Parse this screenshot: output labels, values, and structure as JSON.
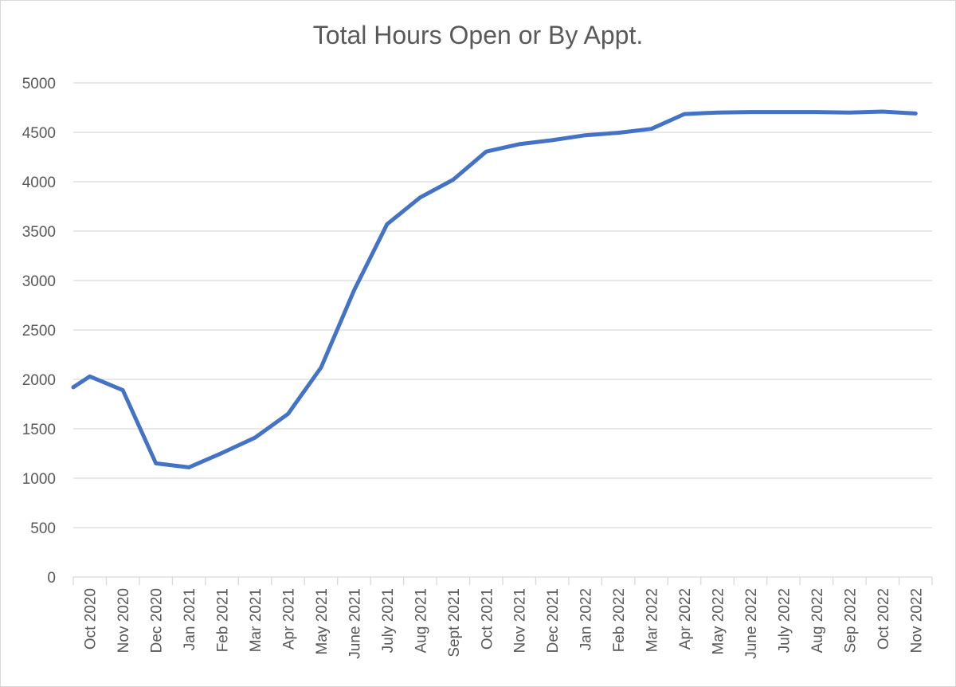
{
  "chart_data": {
    "type": "line",
    "title": "Total Hours Open or By Appt.",
    "xlabel": "",
    "ylabel": "",
    "ylim": [
      0,
      5000
    ],
    "yticks": [
      0,
      500,
      1000,
      1500,
      2000,
      2500,
      3000,
      3500,
      4000,
      4500,
      5000
    ],
    "categories": [
      "Oct 2020",
      "Nov 2020",
      "Dec 2020",
      "Jan 2021",
      "Feb 2021",
      "Mar 2021",
      "Apr 2021",
      "May 2021",
      "June 2021",
      "July 2021",
      "Aug 2021",
      "Sept 2021",
      "Oct 2021",
      "Nov 2021",
      "Dec 2021",
      "Jan 2022",
      "Feb 2022",
      "Mar 2022",
      "Apr 2022",
      "May 2022",
      "June 2022",
      "July 2022",
      "Aug 2022",
      "Sep 2022",
      "Oct 2022",
      "Nov 2022"
    ],
    "series": [
      {
        "color": "#4472C4",
        "x_start": -0.5,
        "start_value": 1920,
        "values": [
          2030,
          1890,
          1150,
          1110,
          1255,
          1410,
          1650,
          2120,
          2900,
          3570,
          3840,
          4020,
          4305,
          4380,
          4420,
          4470,
          4495,
          4535,
          4685,
          4700,
          4705,
          4705,
          4705,
          4700,
          4710,
          4690
        ]
      }
    ],
    "grid": true,
    "legend": "none",
    "gridline_color": "#d9d9d9",
    "axis_color": "#d9d9d9",
    "text_color": "#595959"
  }
}
